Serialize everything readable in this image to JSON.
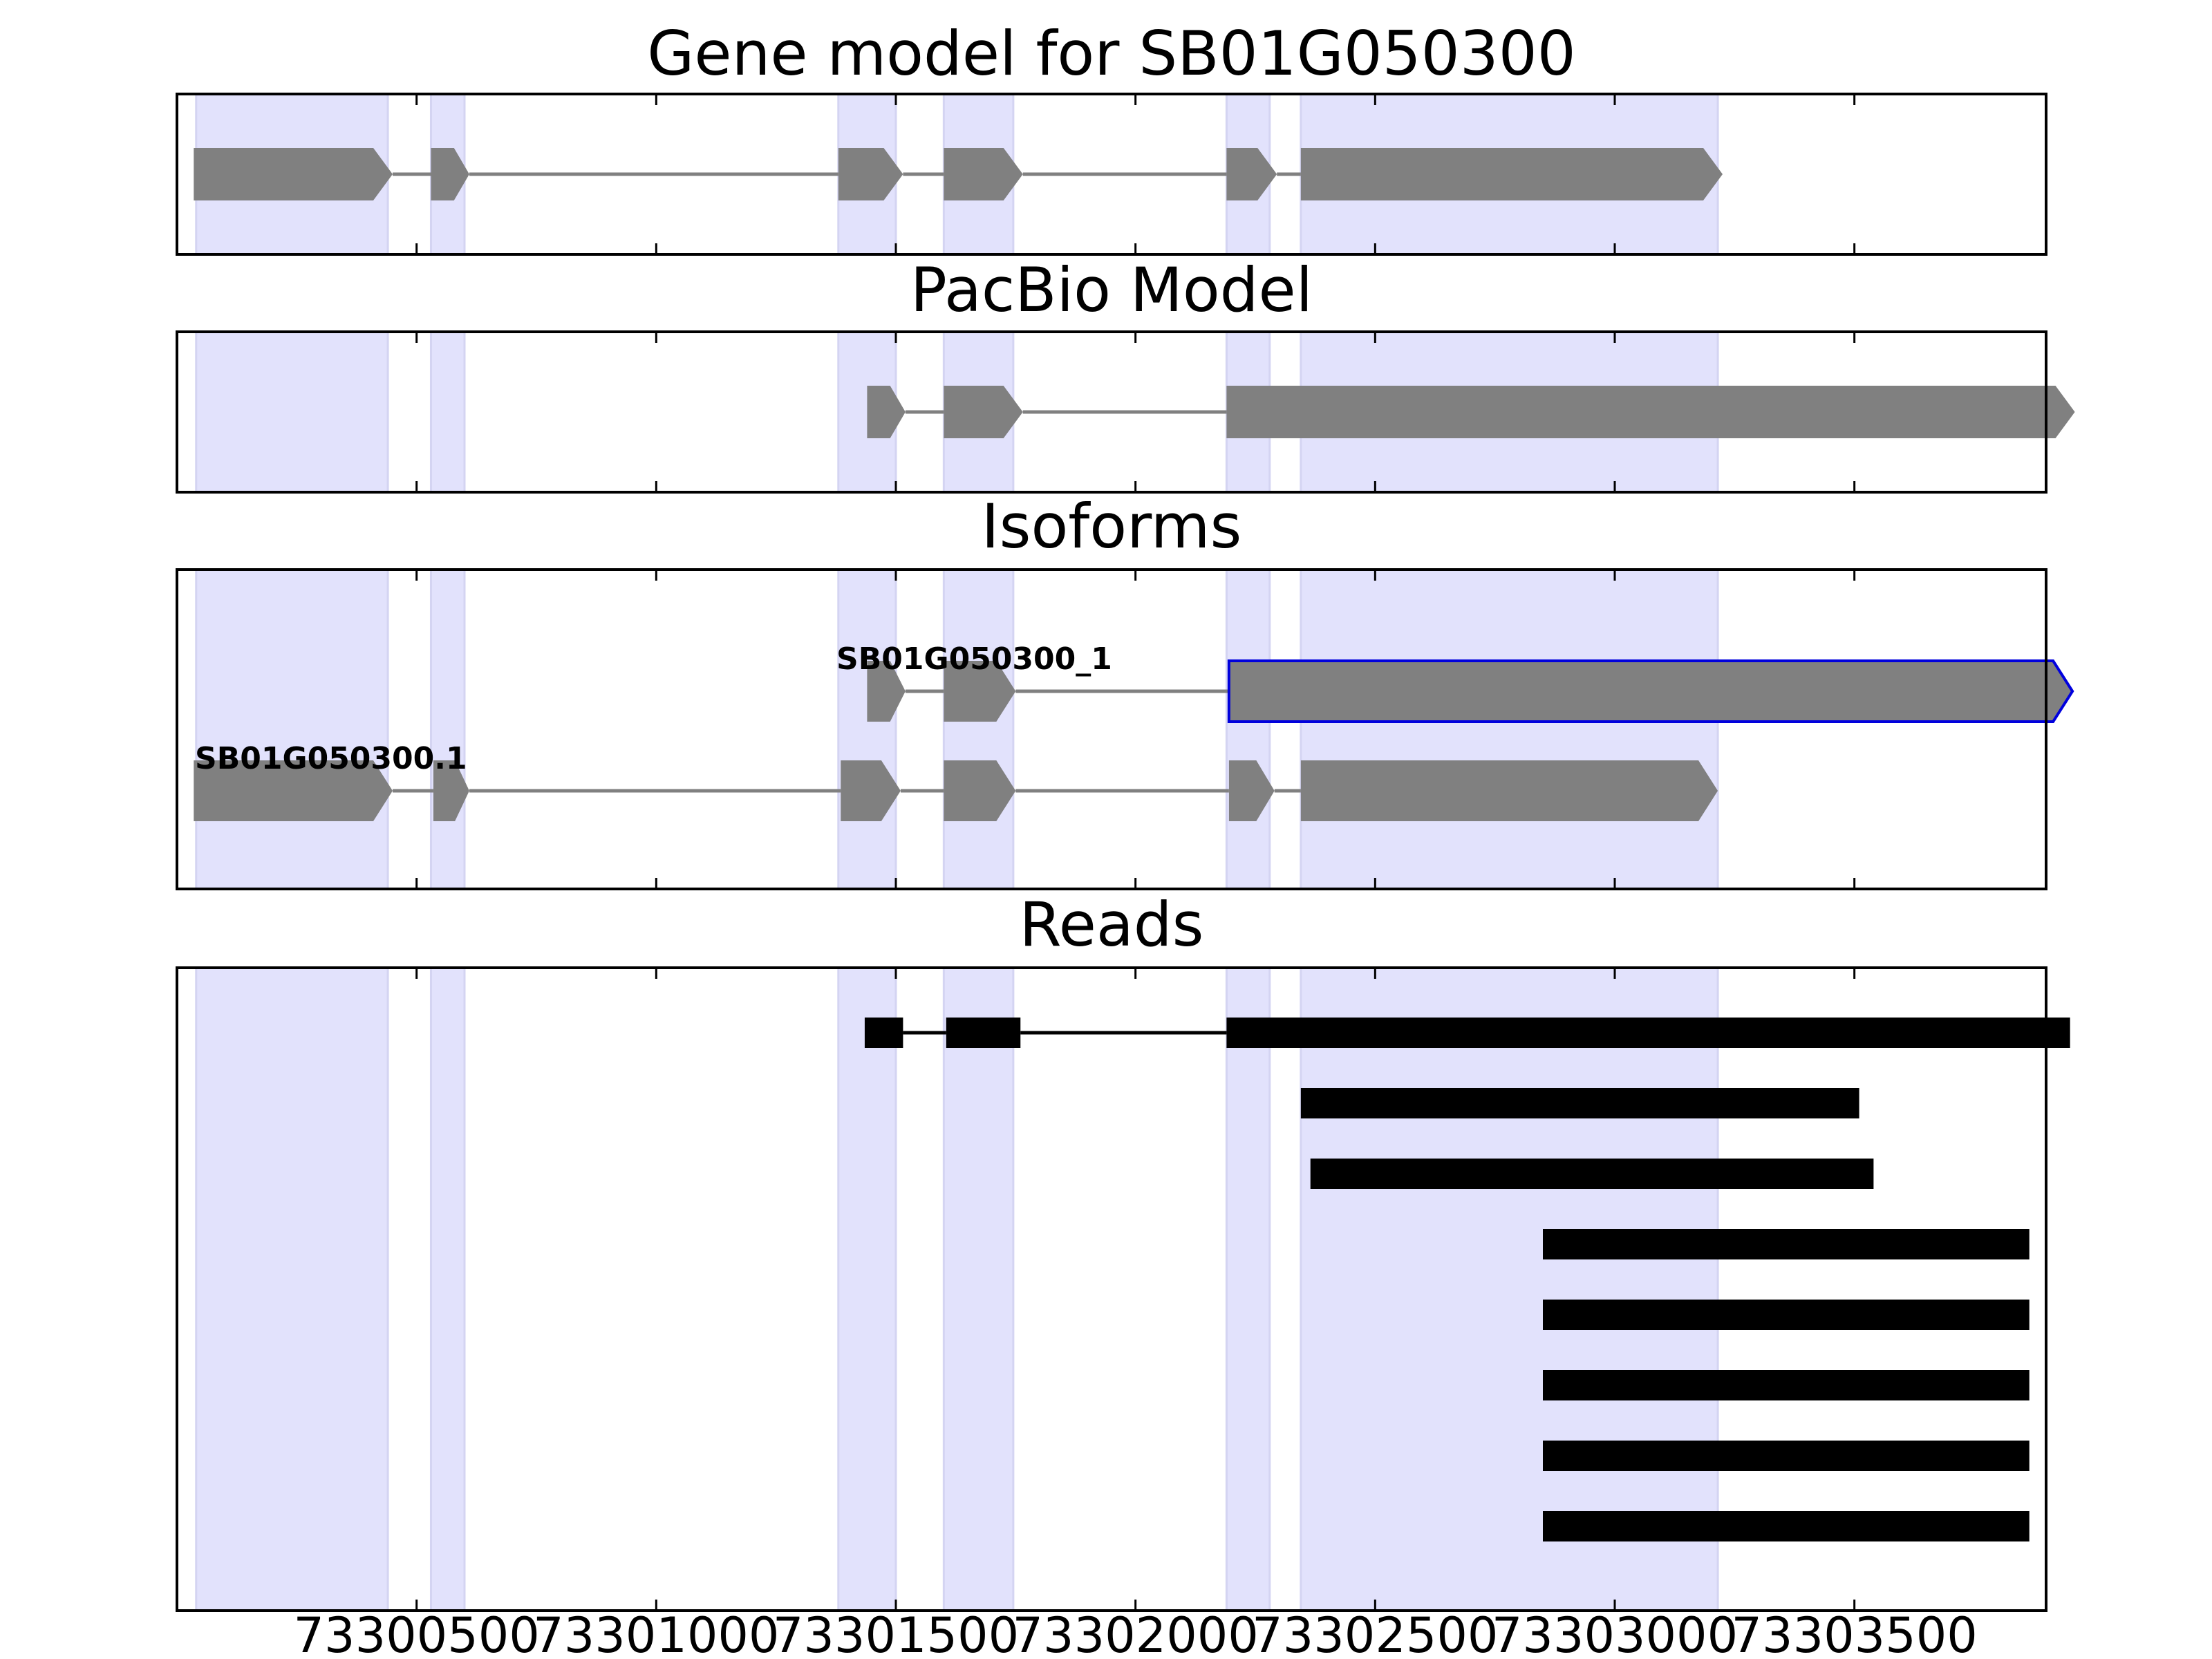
{
  "panels": [
    {
      "title": "Gene model for SB01G050300"
    },
    {
      "title": "PacBio Model"
    },
    {
      "title": "Isoforms"
    },
    {
      "title": "Reads"
    }
  ],
  "x_axis": {
    "range": [
      73300000,
      73303900
    ],
    "ticks": [
      73300500,
      73301000,
      73301500,
      73302000,
      73302500,
      73303000,
      73303500
    ],
    "tick_labels": [
      "73300500",
      "73301000",
      "73301500",
      "73302000",
      "73302500",
      "73303000",
      "73303500"
    ]
  },
  "highlight_regions": [
    [
      73300040,
      73300440
    ],
    [
      73300530,
      73300600
    ],
    [
      73301380,
      73301500
    ],
    [
      73301600,
      73301745
    ],
    [
      73302190,
      73302280
    ],
    [
      73302345,
      73303215
    ]
  ],
  "colors": {
    "highlight": "#e2e2fc",
    "exon": "#808080",
    "intron": "#808080",
    "read": "#000000",
    "selected_outline": "#0000dd",
    "frame": "#000000"
  },
  "gene_model": {
    "exons": [
      [
        73300035,
        73300450
      ],
      [
        73300530,
        73300610
      ],
      [
        73301380,
        73301515
      ],
      [
        73301600,
        73301765
      ],
      [
        73302190,
        73302295
      ],
      [
        73302345,
        73303225
      ]
    ]
  },
  "pacbio_model": {
    "exons": [
      [
        73301440,
        73301520
      ],
      [
        73301600,
        73301765
      ],
      [
        73302190,
        73303960
      ]
    ]
  },
  "isoforms": [
    {
      "label": "SB01G050300_1",
      "exons": [
        [
          73301440,
          73301520
        ],
        [
          73301600,
          73301750
        ],
        [
          73302195,
          73303955
        ]
      ],
      "selected": true
    },
    {
      "label": "SB01G050300.1",
      "exons": [
        [
          73300035,
          73300450
        ],
        [
          73300535,
          73300610
        ],
        [
          73301385,
          73301510
        ],
        [
          73301600,
          73301750
        ],
        [
          73302195,
          73302290
        ],
        [
          73302345,
          73303215
        ]
      ],
      "selected": false
    }
  ],
  "reads": [
    {
      "blocks": [
        [
          73301435,
          73301515
        ],
        [
          73301605,
          73301760
        ],
        [
          73302190,
          73303950
        ]
      ]
    },
    {
      "blocks": [
        [
          73302345,
          73303510
        ]
      ]
    },
    {
      "blocks": [
        [
          73302365,
          73303540
        ]
      ]
    },
    {
      "blocks": [
        [
          73302850,
          73303865
        ]
      ]
    },
    {
      "blocks": [
        [
          73302850,
          73303865
        ]
      ]
    },
    {
      "blocks": [
        [
          73302850,
          73303865
        ]
      ]
    },
    {
      "blocks": [
        [
          73302850,
          73303865
        ]
      ]
    },
    {
      "blocks": [
        [
          73302850,
          73303865
        ]
      ]
    }
  ]
}
